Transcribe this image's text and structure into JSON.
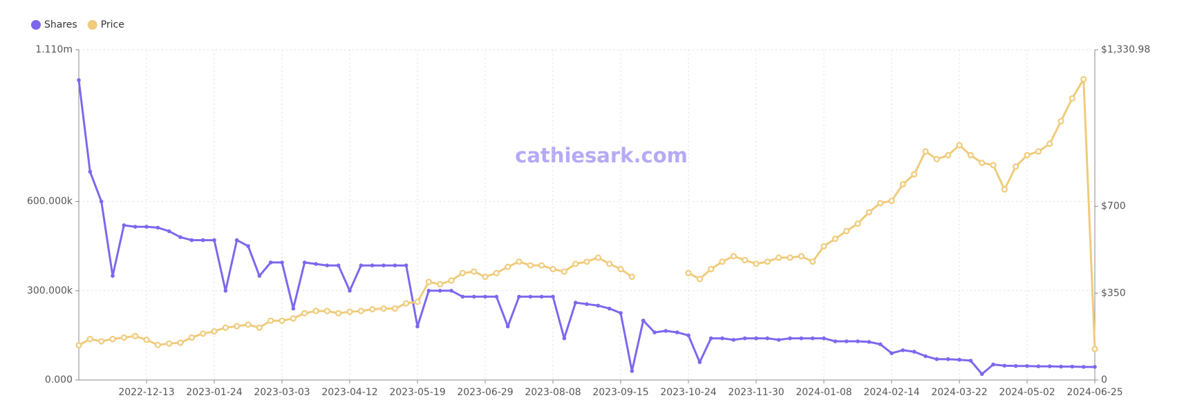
{
  "chart_data": {
    "type": "line",
    "watermark": "cathiesark.com",
    "categories": [
      null,
      null,
      null,
      null,
      null,
      null,
      "2022-12-13",
      null,
      null,
      null,
      null,
      null,
      "2023-01-24",
      null,
      null,
      null,
      null,
      null,
      "2023-03-03",
      null,
      null,
      null,
      null,
      null,
      "2023-04-12",
      null,
      null,
      null,
      null,
      null,
      "2023-05-19",
      null,
      null,
      null,
      null,
      null,
      "2023-06-29",
      null,
      null,
      null,
      null,
      null,
      "2023-08-08",
      null,
      null,
      null,
      null,
      null,
      "2023-09-15",
      null,
      null,
      null,
      null,
      null,
      "2023-10-24",
      null,
      null,
      null,
      null,
      null,
      "2023-11-30",
      null,
      null,
      null,
      null,
      null,
      "2024-01-08",
      null,
      null,
      null,
      null,
      null,
      "2024-02-14",
      null,
      null,
      null,
      null,
      null,
      "2024-03-22",
      null,
      null,
      null,
      null,
      null,
      "2024-05-02",
      null,
      null,
      null,
      null,
      null,
      "2024-06-25"
    ],
    "series": [
      {
        "name": "Shares",
        "color": "#7b68ee",
        "axis": "y",
        "values": [
          1008000,
          700000,
          600000,
          350000,
          520000,
          515000,
          515000,
          512000,
          500000,
          480000,
          470000,
          470000,
          470000,
          300000,
          470000,
          450000,
          350000,
          395000,
          395000,
          240000,
          395000,
          390000,
          385000,
          385000,
          300000,
          385000,
          385000,
          385000,
          385000,
          385000,
          180000,
          300000,
          300000,
          300000,
          280000,
          280000,
          280000,
          280000,
          180000,
          280000,
          280000,
          280000,
          280000,
          140000,
          260000,
          255000,
          250000,
          240000,
          225000,
          30000,
          200000,
          160000,
          165000,
          160000,
          150000,
          60000,
          140000,
          140000,
          135000,
          140000,
          140000,
          140000,
          135000,
          140000,
          140000,
          140000,
          140000,
          130000,
          130000,
          130000,
          128000,
          120000,
          90000,
          100000,
          95000,
          80000,
          70000,
          70000,
          68000,
          65000,
          20000,
          52000,
          48000,
          47000,
          47000,
          46000,
          46000,
          45000,
          45000,
          44000,
          44000
        ]
      },
      {
        "name": "Price",
        "color": "#efcb7b",
        "axis": "y2",
        "values": [
          140,
          165,
          156,
          165,
          171,
          177,
          162,
          141,
          147,
          150,
          171,
          187,
          196,
          211,
          217,
          223,
          211,
          239,
          239,
          248,
          269,
          278,
          278,
          269,
          275,
          278,
          285,
          288,
          288,
          309,
          315,
          395,
          386,
          401,
          431,
          437,
          416,
          431,
          456,
          477,
          462,
          462,
          447,
          437,
          468,
          477,
          493,
          468,
          447,
          416,
          null,
          null,
          null,
          null,
          431,
          407,
          447,
          477,
          499,
          483,
          468,
          477,
          493,
          493,
          499,
          477,
          539,
          569,
          600,
          630,
          676,
          713,
          722,
          789,
          829,
          921,
          890,
          906,
          946,
          906,
          875,
          866,
          768,
          860,
          906,
          921,
          952,
          1043,
          1135,
          1212,
          125
        ]
      }
    ],
    "ylim": [
      0,
      1110000
    ],
    "yticks": [
      {
        "value": 0,
        "label": "0.000"
      },
      {
        "value": 300000,
        "label": "300.000k"
      },
      {
        "value": 600000,
        "label": "600.000k"
      },
      {
        "value": 1110000,
        "label": "1.110m"
      }
    ],
    "y2lim": [
      0,
      1330.98
    ],
    "y2ticks": [
      0,
      {
        "value": 350,
        "label": "$350"
      },
      {
        "value": 700,
        "label": "$700"
      },
      {
        "value": 1330.98,
        "label": "$1,330.98"
      }
    ],
    "grid": true,
    "legend": "top-left"
  }
}
